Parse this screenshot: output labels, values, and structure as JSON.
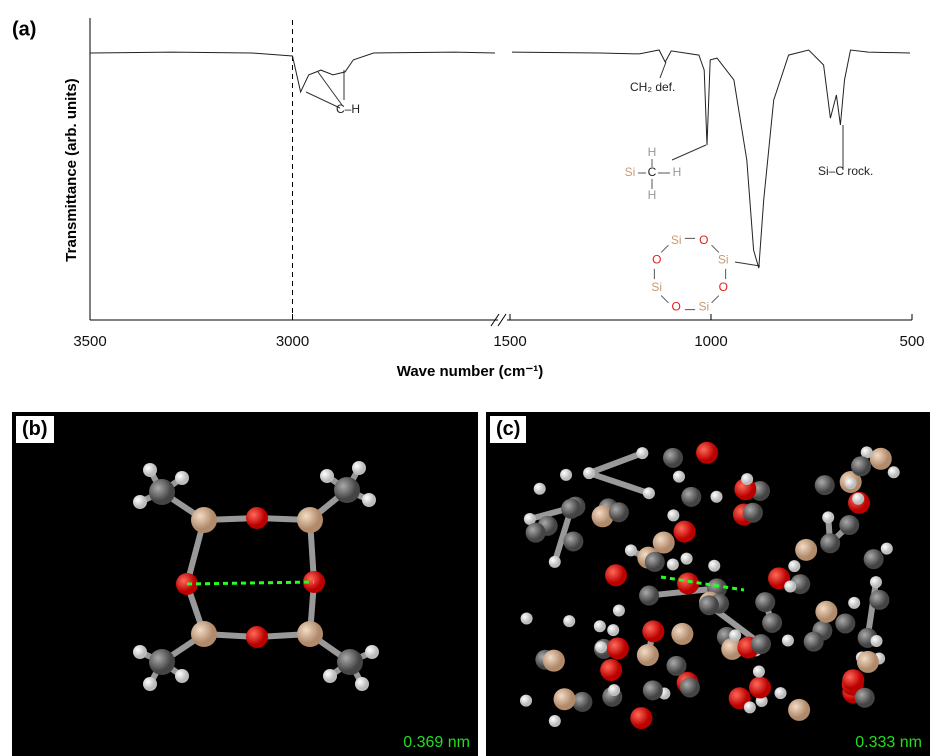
{
  "chart_data": {
    "type": "line",
    "panel_label": "(a)",
    "y_label": "Transmittance (arb. units)",
    "x_label": "Wave number (cm⁻¹)",
    "xlim": [
      3500,
      500
    ],
    "x_break": [
      2500,
      1500
    ],
    "xticks": [
      3500,
      3000,
      1500,
      1000,
      500
    ],
    "ylim": [
      0,
      1
    ],
    "vline": 3000,
    "series": [
      {
        "color": "#222",
        "x": [
          3500,
          3300,
          3100,
          3000,
          2980,
          2960,
          2930,
          2900,
          2870,
          2850,
          2800,
          2600,
          2500,
          2000,
          1495,
          1277,
          1178,
          1129,
          1114,
          1099,
          1030,
          1017,
          1010,
          1002,
          985,
          943,
          911,
          894,
          881,
          869,
          844,
          807,
          757,
          720,
          703,
          688,
          678,
          668,
          653,
          609,
          505
        ],
        "values": [
          0.89,
          0.893,
          0.89,
          0.88,
          0.76,
          0.817,
          0.833,
          0.817,
          0.827,
          0.867,
          0.89,
          0.893,
          0.89,
          null,
          0.893,
          0.89,
          0.887,
          0.9,
          0.86,
          0.897,
          0.883,
          0.833,
          0.583,
          0.867,
          0.873,
          0.8,
          0.533,
          0.233,
          0.173,
          0.4,
          0.733,
          0.883,
          0.9,
          0.85,
          0.673,
          0.75,
          0.65,
          0.8,
          0.9,
          0.893,
          0.89
        ]
      }
    ],
    "annotations": [
      "C–H",
      "CH₂ def.",
      "Si–C rock."
    ],
    "methyl_labels": [
      "H",
      "Si",
      "C",
      "H",
      "H"
    ],
    "ring_labels": [
      "Si",
      "O",
      "Si",
      "O",
      "Si",
      "O",
      "Si",
      "O"
    ]
  },
  "panels": {
    "b": {
      "label": "(b)",
      "distance": "0.369 nm"
    },
    "c": {
      "label": "(c)",
      "distance": "0.333 nm"
    }
  }
}
